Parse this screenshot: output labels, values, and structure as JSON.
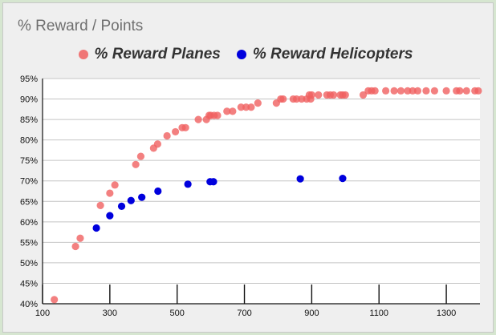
{
  "chart_data": {
    "type": "scatter",
    "title": "% Reward / Points",
    "xlabel": "",
    "ylabel": "",
    "xlim": [
      100,
      1400
    ],
    "ylim": [
      0.4,
      0.95
    ],
    "x_ticks": [
      "100",
      "300",
      "500",
      "700",
      "900",
      "1100",
      "1300"
    ],
    "y_ticks": [
      "40%",
      "45%",
      "50%",
      "55%",
      "60%",
      "65%",
      "70%",
      "75%",
      "80%",
      "85%",
      "90%",
      "95%"
    ],
    "grid": "horizontal",
    "legend_position": "top",
    "series": [
      {
        "name": "% Reward Planes",
        "color": "#f06060",
        "points": [
          [
            135,
            0.41
          ],
          [
            198,
            0.54
          ],
          [
            212,
            0.56
          ],
          [
            272,
            0.64
          ],
          [
            300,
            0.67
          ],
          [
            315,
            0.69
          ],
          [
            377,
            0.74
          ],
          [
            392,
            0.76
          ],
          [
            430,
            0.78
          ],
          [
            442,
            0.79
          ],
          [
            470,
            0.81
          ],
          [
            495,
            0.82
          ],
          [
            515,
            0.83
          ],
          [
            525,
            0.83
          ],
          [
            563,
            0.85
          ],
          [
            587,
            0.85
          ],
          [
            595,
            0.86
          ],
          [
            600,
            0.86
          ],
          [
            610,
            0.86
          ],
          [
            620,
            0.86
          ],
          [
            648,
            0.87
          ],
          [
            665,
            0.87
          ],
          [
            690,
            0.88
          ],
          [
            705,
            0.88
          ],
          [
            720,
            0.88
          ],
          [
            740,
            0.89
          ],
          [
            795,
            0.89
          ],
          [
            808,
            0.9
          ],
          [
            815,
            0.9
          ],
          [
            845,
            0.9
          ],
          [
            855,
            0.9
          ],
          [
            870,
            0.9
          ],
          [
            885,
            0.9
          ],
          [
            893,
            0.91
          ],
          [
            897,
            0.9
          ],
          [
            900,
            0.91
          ],
          [
            920,
            0.91
          ],
          [
            945,
            0.91
          ],
          [
            955,
            0.91
          ],
          [
            965,
            0.91
          ],
          [
            985,
            0.91
          ],
          [
            992,
            0.91
          ],
          [
            1000,
            0.91
          ],
          [
            1053,
            0.91
          ],
          [
            1068,
            0.92
          ],
          [
            1078,
            0.92
          ],
          [
            1088,
            0.92
          ],
          [
            1120,
            0.92
          ],
          [
            1145,
            0.92
          ],
          [
            1165,
            0.92
          ],
          [
            1185,
            0.92
          ],
          [
            1200,
            0.92
          ],
          [
            1215,
            0.92
          ],
          [
            1240,
            0.92
          ],
          [
            1265,
            0.92
          ],
          [
            1300,
            0.92
          ],
          [
            1330,
            0.92
          ],
          [
            1340,
            0.92
          ],
          [
            1360,
            0.92
          ],
          [
            1385,
            0.92
          ],
          [
            1395,
            0.92
          ]
        ]
      },
      {
        "name": "% Reward Helicopters",
        "color": "#0000dd",
        "points": [
          [
            260,
            0.585
          ],
          [
            300,
            0.615
          ],
          [
            335,
            0.638
          ],
          [
            363,
            0.652
          ],
          [
            395,
            0.66
          ],
          [
            443,
            0.675
          ],
          [
            532,
            0.692
          ],
          [
            598,
            0.698
          ],
          [
            608,
            0.698
          ],
          [
            866,
            0.705
          ],
          [
            992,
            0.706
          ]
        ]
      }
    ]
  }
}
